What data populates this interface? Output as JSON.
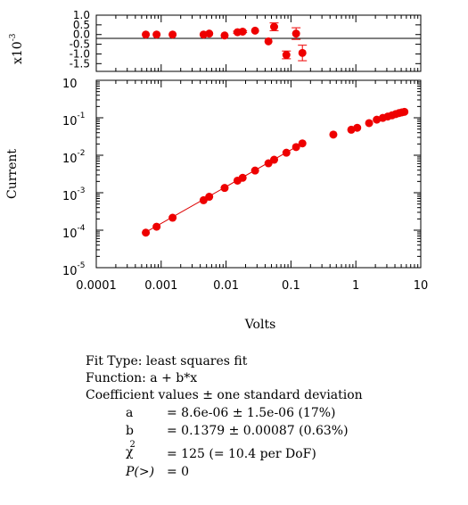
{
  "chart_data": {
    "type": "scatter",
    "xscale": "log",
    "yscale": "log",
    "xlim": [
      0.0001,
      10
    ],
    "ylim": [
      1e-05,
      1
    ],
    "xlabel": "Volts",
    "ylabel": "Current",
    "xtick_labels": [
      "0.0001",
      "0.001",
      "0.01",
      "0.1",
      "1",
      "10"
    ],
    "ytick_labels": [
      {
        "base": "10",
        "exp": "-5"
      },
      {
        "base": "10",
        "exp": "-4"
      },
      {
        "base": "10",
        "exp": "-3"
      },
      {
        "base": "10",
        "exp": "-2"
      },
      {
        "base": "10",
        "exp": "-1"
      },
      {
        "base": "10",
        "exp": ""
      }
    ],
    "grid": false,
    "marker_color": "#ee0000",
    "fit_line_color": "#dd0000",
    "fit": {
      "a": 8.6e-06,
      "b": 0.1379
    },
    "points": [
      {
        "x": 0.00058,
        "y": 8.6e-05
      },
      {
        "x": 0.00085,
        "y": 0.000124
      },
      {
        "x": 0.0015,
        "y": 0.000215
      },
      {
        "x": 0.0045,
        "y": 0.00063
      },
      {
        "x": 0.0055,
        "y": 0.00078
      },
      {
        "x": 0.0095,
        "y": 0.00134
      },
      {
        "x": 0.015,
        "y": 0.0021
      },
      {
        "x": 0.018,
        "y": 0.0025
      },
      {
        "x": 0.028,
        "y": 0.0039
      },
      {
        "x": 0.045,
        "y": 0.0061
      },
      {
        "x": 0.055,
        "y": 0.0076
      },
      {
        "x": 0.085,
        "y": 0.0117
      },
      {
        "x": 0.12,
        "y": 0.0165
      },
      {
        "x": 0.15,
        "y": 0.0207
      },
      {
        "x": 0.45,
        "y": 0.0356
      },
      {
        "x": 0.85,
        "y": 0.048
      },
      {
        "x": 1.05,
        "y": 0.054
      },
      {
        "x": 1.6,
        "y": 0.072
      },
      {
        "x": 2.1,
        "y": 0.089
      },
      {
        "x": 2.6,
        "y": 0.099
      },
      {
        "x": 3.1,
        "y": 0.108
      },
      {
        "x": 3.6,
        "y": 0.116
      },
      {
        "x": 4.1,
        "y": 0.125
      },
      {
        "x": 4.6,
        "y": 0.133
      },
      {
        "x": 5.1,
        "y": 0.139
      },
      {
        "x": 5.6,
        "y": 0.144
      }
    ],
    "residuals": {
      "multiplier_label": {
        "base": "x10",
        "exp": "-3"
      },
      "ylim": [
        -1.9,
        1.0
      ],
      "ytick_labels": [
        "1.0",
        "0.5",
        "0.0",
        "-0.5",
        "-1.0",
        "-1.5"
      ],
      "points": [
        {
          "x": 0.00058,
          "y": 0.0,
          "err": 0.0
        },
        {
          "x": 0.00085,
          "y": 0.0,
          "err": 0.0
        },
        {
          "x": 0.0015,
          "y": 0.0,
          "err": 0.0
        },
        {
          "x": 0.0045,
          "y": 0.0,
          "err": 0.0
        },
        {
          "x": 0.0055,
          "y": 0.05,
          "err": 0.0
        },
        {
          "x": 0.0095,
          "y": -0.05,
          "err": 0.0
        },
        {
          "x": 0.015,
          "y": 0.12,
          "err": 0.05
        },
        {
          "x": 0.018,
          "y": 0.15,
          "err": 0.05
        },
        {
          "x": 0.028,
          "y": 0.2,
          "err": 0.0
        },
        {
          "x": 0.045,
          "y": -0.35,
          "err": 0.0
        },
        {
          "x": 0.055,
          "y": 0.4,
          "err": 0.2
        },
        {
          "x": 0.085,
          "y": -1.05,
          "err": 0.2
        },
        {
          "x": 0.12,
          "y": 0.05,
          "err": 0.3
        },
        {
          "x": 0.15,
          "y": -0.95,
          "err": 0.4
        }
      ]
    }
  },
  "fit_info": {
    "fit_type": "Fit Type: least squares fit",
    "function": "Function: a + b*x",
    "coef_header": "Coefficient values ± one standard deviation",
    "coefficients": [
      {
        "name": "a",
        "value": "= 8.6e-06 ± 1.5e-06  (17%)"
      },
      {
        "name": "b",
        "value": "= 0.1379 ± 0.00087  (0.63%)"
      }
    ],
    "chi_symbol": "χ",
    "chi_exp": "2",
    "chi_value": "= 125 (= 10.4 per DoF)",
    "p_label": "P(>)",
    "p_value": "= 0"
  }
}
